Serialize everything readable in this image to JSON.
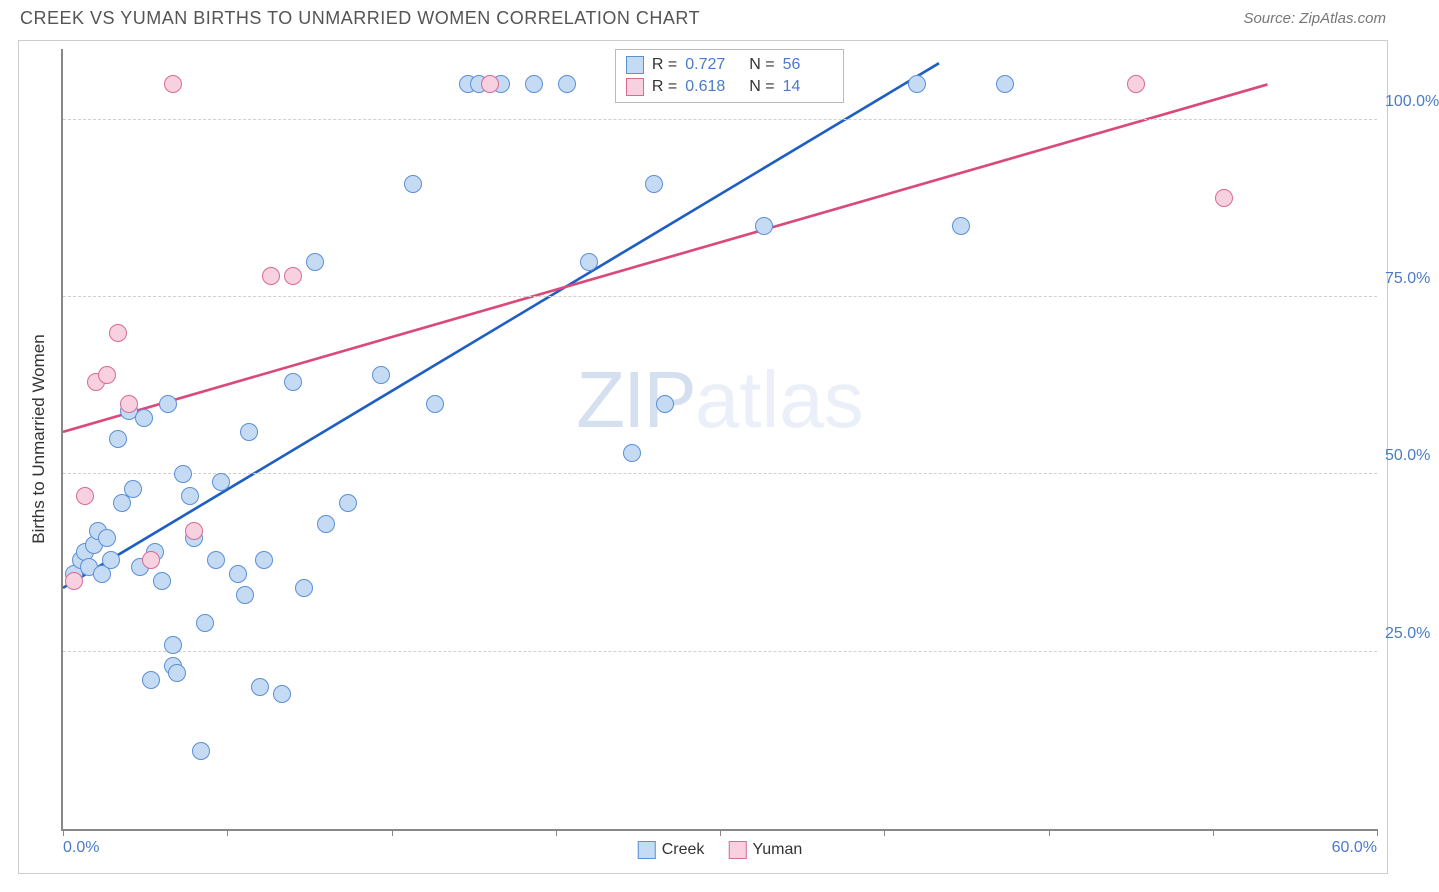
{
  "title": "CREEK VS YUMAN BIRTHS TO UNMARRIED WOMEN CORRELATION CHART",
  "source_label": "Source: ZipAtlas.com",
  "ylabel": "Births to Unmarried Women",
  "watermark_bold": "ZIP",
  "watermark_rest": "atlas",
  "chart": {
    "type": "scatter",
    "xlim": [
      0,
      60
    ],
    "ylim": [
      0,
      110
    ],
    "xtick_positions": [
      0,
      7.5,
      15,
      22.5,
      30,
      37.5,
      45,
      52.5,
      60
    ],
    "xtick_labels": {
      "0": "0.0%",
      "60": "60.0%"
    },
    "ytick_positions": [
      25,
      50,
      75,
      100
    ],
    "ytick_labels": [
      "25.0%",
      "50.0%",
      "75.0%",
      "100.0%"
    ],
    "grid_y": [
      25,
      50,
      75,
      100
    ],
    "grid_color": "#d0d0d0",
    "background_color": "#ffffff",
    "marker_radius": 9,
    "marker_border": 1.2,
    "line_width": 2.2,
    "series": [
      {
        "name": "Creek",
        "fill": "#c5dbf3",
        "stroke": "#5b8fd6",
        "line_color": "#1f5fc4",
        "R": "0.727",
        "N": "56",
        "trend": {
          "x1": 0,
          "y1": 34,
          "x2": 40,
          "y2": 108
        },
        "points": [
          [
            0.5,
            36
          ],
          [
            0.8,
            38
          ],
          [
            1,
            39
          ],
          [
            1.2,
            37
          ],
          [
            1.4,
            40
          ],
          [
            1.6,
            42
          ],
          [
            1.8,
            36
          ],
          [
            2,
            41
          ],
          [
            2.2,
            38
          ],
          [
            2.5,
            55
          ],
          [
            2.7,
            46
          ],
          [
            3,
            59
          ],
          [
            3.2,
            48
          ],
          [
            3.5,
            37
          ],
          [
            3.7,
            58
          ],
          [
            4,
            21
          ],
          [
            4.2,
            39
          ],
          [
            4.5,
            35
          ],
          [
            4.8,
            60
          ],
          [
            5,
            23
          ],
          [
            5,
            26
          ],
          [
            5.2,
            22
          ],
          [
            5.5,
            50
          ],
          [
            5.8,
            47
          ],
          [
            6,
            41
          ],
          [
            6.3,
            11
          ],
          [
            6.5,
            29
          ],
          [
            7,
            38
          ],
          [
            7.2,
            49
          ],
          [
            8,
            36
          ],
          [
            8.3,
            33
          ],
          [
            8.5,
            56
          ],
          [
            9,
            20
          ],
          [
            9.2,
            38
          ],
          [
            10,
            19
          ],
          [
            10.5,
            63
          ],
          [
            11,
            34
          ],
          [
            11.5,
            80
          ],
          [
            12,
            43
          ],
          [
            13,
            46
          ],
          [
            14.5,
            64
          ],
          [
            16,
            91
          ],
          [
            17,
            60
          ],
          [
            18.5,
            105
          ],
          [
            19,
            105
          ],
          [
            20,
            105
          ],
          [
            21.5,
            105
          ],
          [
            23,
            105
          ],
          [
            24,
            80
          ],
          [
            26,
            53
          ],
          [
            27,
            91
          ],
          [
            27.5,
            60
          ],
          [
            32,
            85
          ],
          [
            39,
            105
          ],
          [
            41,
            85
          ],
          [
            43,
            105
          ]
        ]
      },
      {
        "name": "Yuman",
        "fill": "#f7d1df",
        "stroke": "#d96a94",
        "line_color": "#d94a7a",
        "R": "0.618",
        "N": "14",
        "trend": {
          "x1": 0,
          "y1": 56,
          "x2": 55,
          "y2": 105
        },
        "points": [
          [
            0.5,
            35
          ],
          [
            1,
            47
          ],
          [
            1.5,
            63
          ],
          [
            2,
            64
          ],
          [
            2.5,
            70
          ],
          [
            3,
            60
          ],
          [
            4,
            38
          ],
          [
            5,
            105
          ],
          [
            6,
            42
          ],
          [
            9.5,
            78
          ],
          [
            10.5,
            78
          ],
          [
            19.5,
            105
          ],
          [
            49,
            105
          ],
          [
            53,
            89
          ]
        ]
      }
    ]
  },
  "bottom_legend": [
    {
      "label": "Creek",
      "fill": "#c5dbf3",
      "stroke": "#5b8fd6"
    },
    {
      "label": "Yuman",
      "fill": "#f7d1df",
      "stroke": "#d96a94"
    }
  ]
}
